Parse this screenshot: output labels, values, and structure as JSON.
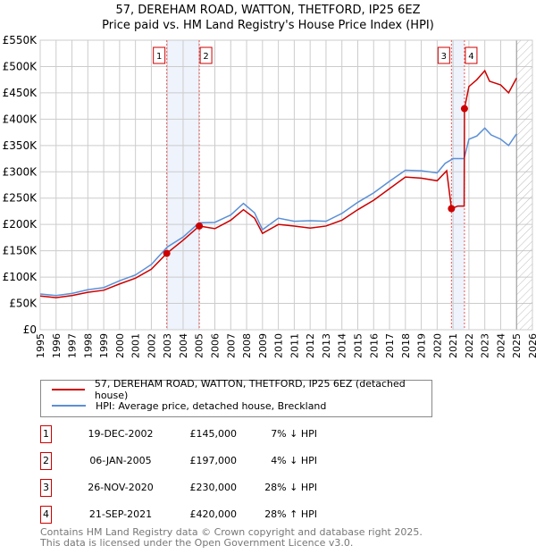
{
  "chart_data": {
    "type": "line",
    "title": "57, DEREHAM ROAD, WATTON, THETFORD, IP25 6EZ",
    "subtitle": "Price paid vs. HM Land Registry's House Price Index (HPI)",
    "xlim": [
      1995,
      2026
    ],
    "ylim": [
      0,
      550000
    ],
    "x_ticks": [
      "1995",
      "1996",
      "1997",
      "1998",
      "1999",
      "2000",
      "2001",
      "2002",
      "2003",
      "2004",
      "2005",
      "2006",
      "2007",
      "2008",
      "2009",
      "2010",
      "2011",
      "2012",
      "2013",
      "2014",
      "2015",
      "2016",
      "2017",
      "2018",
      "2019",
      "2020",
      "2021",
      "2022",
      "2023",
      "2024",
      "2025",
      "2026"
    ],
    "y_ticks": [
      {
        "v": 0,
        "l": "£0"
      },
      {
        "v": 50000,
        "l": "£50K"
      },
      {
        "v": 100000,
        "l": "£100K"
      },
      {
        "v": 150000,
        "l": "£150K"
      },
      {
        "v": 200000,
        "l": "£200K"
      },
      {
        "v": 250000,
        "l": "£250K"
      },
      {
        "v": 300000,
        "l": "£300K"
      },
      {
        "v": 350000,
        "l": "£350K"
      },
      {
        "v": 400000,
        "l": "£400K"
      },
      {
        "v": 450000,
        "l": "£450K"
      },
      {
        "v": 500000,
        "l": "£500K"
      },
      {
        "v": 550000,
        "l": "£550K"
      }
    ],
    "grid": true,
    "series": [
      {
        "name": "57, DEREHAM ROAD, WATTON, THETFORD, IP25 6EZ (detached house)",
        "color": "#cc0000",
        "points": [
          [
            1995,
            64000
          ],
          [
            1996,
            61000
          ],
          [
            1997,
            65000
          ],
          [
            1998,
            71000
          ],
          [
            1999,
            75000
          ],
          [
            2000,
            87000
          ],
          [
            2001,
            98000
          ],
          [
            2002,
            115000
          ],
          [
            2002.97,
            145000
          ],
          [
            2004,
            170000
          ],
          [
            2005.02,
            197000
          ],
          [
            2006,
            192000
          ],
          [
            2007,
            208000
          ],
          [
            2007.8,
            228000
          ],
          [
            2008.5,
            212000
          ],
          [
            2009,
            183000
          ],
          [
            2010,
            200000
          ],
          [
            2011,
            197000
          ],
          [
            2012,
            193000
          ],
          [
            2013,
            197000
          ],
          [
            2014,
            208000
          ],
          [
            2015,
            228000
          ],
          [
            2016,
            246000
          ],
          [
            2017,
            268000
          ],
          [
            2018,
            290000
          ],
          [
            2019,
            288000
          ],
          [
            2020,
            283000
          ],
          [
            2020.6,
            302000
          ],
          [
            2020.9,
            230000
          ],
          [
            2021.3,
            235000
          ],
          [
            2021.7,
            235000
          ],
          [
            2021.72,
            420000
          ],
          [
            2022,
            462000
          ],
          [
            2022.5,
            475000
          ],
          [
            2023,
            492000
          ],
          [
            2023.3,
            472000
          ],
          [
            2024,
            465000
          ],
          [
            2024.5,
            450000
          ],
          [
            2025,
            478000
          ]
        ]
      },
      {
        "name": "HPI: Average price, detached house, Breckland",
        "color": "#5b8fd6",
        "points": [
          [
            1995,
            68000
          ],
          [
            1996,
            65000
          ],
          [
            1997,
            69000
          ],
          [
            1998,
            76000
          ],
          [
            1999,
            80000
          ],
          [
            2000,
            93000
          ],
          [
            2001,
            104000
          ],
          [
            2002,
            124000
          ],
          [
            2003,
            157000
          ],
          [
            2004,
            176000
          ],
          [
            2005,
            203000
          ],
          [
            2006,
            204000
          ],
          [
            2007,
            218000
          ],
          [
            2007.8,
            240000
          ],
          [
            2008.5,
            222000
          ],
          [
            2009,
            190000
          ],
          [
            2010,
            212000
          ],
          [
            2011,
            206000
          ],
          [
            2012,
            207000
          ],
          [
            2013,
            206000
          ],
          [
            2014,
            221000
          ],
          [
            2015,
            242000
          ],
          [
            2016,
            260000
          ],
          [
            2017,
            282000
          ],
          [
            2018,
            303000
          ],
          [
            2019,
            302000
          ],
          [
            2020,
            298000
          ],
          [
            2020.5,
            316000
          ],
          [
            2021,
            325000
          ],
          [
            2021.7,
            325000
          ],
          [
            2022,
            362000
          ],
          [
            2022.5,
            368000
          ],
          [
            2023,
            383000
          ],
          [
            2023.4,
            370000
          ],
          [
            2024,
            362000
          ],
          [
            2024.5,
            350000
          ],
          [
            2025,
            372000
          ]
        ]
      }
    ],
    "sales": [
      {
        "label": "1",
        "x": 2002.97,
        "y": 145000
      },
      {
        "label": "2",
        "x": 2005.02,
        "y": 197000
      },
      {
        "label": "3",
        "x": 2020.9,
        "y": 230000
      },
      {
        "label": "4",
        "x": 2021.72,
        "y": 420000
      }
    ],
    "shaded_ranges": [
      [
        2002.97,
        2005.02
      ],
      [
        2020.9,
        2021.72
      ]
    ],
    "forecast_hatch_from": 2025.0
  },
  "legend": {
    "items": [
      {
        "label": "57, DEREHAM ROAD, WATTON, THETFORD, IP25 6EZ (detached house)",
        "color": "#cc0000"
      },
      {
        "label": "HPI: Average price, detached house, Breckland",
        "color": "#5b8fd6"
      }
    ]
  },
  "transactions": [
    {
      "n": "1",
      "date": "19-DEC-2002",
      "price": "£145,000",
      "hpi": "7% ↓ HPI"
    },
    {
      "n": "2",
      "date": "06-JAN-2005",
      "price": "£197,000",
      "hpi": "4% ↓ HPI"
    },
    {
      "n": "3",
      "date": "26-NOV-2020",
      "price": "£230,000",
      "hpi": "28% ↓ HPI"
    },
    {
      "n": "4",
      "date": "21-SEP-2021",
      "price": "£420,000",
      "hpi": "28% ↑ HPI"
    }
  ],
  "footer": {
    "line1": "Contains HM Land Registry data © Crown copyright and database right 2025.",
    "line2": "This data is licensed under the Open Government Licence v3.0."
  }
}
